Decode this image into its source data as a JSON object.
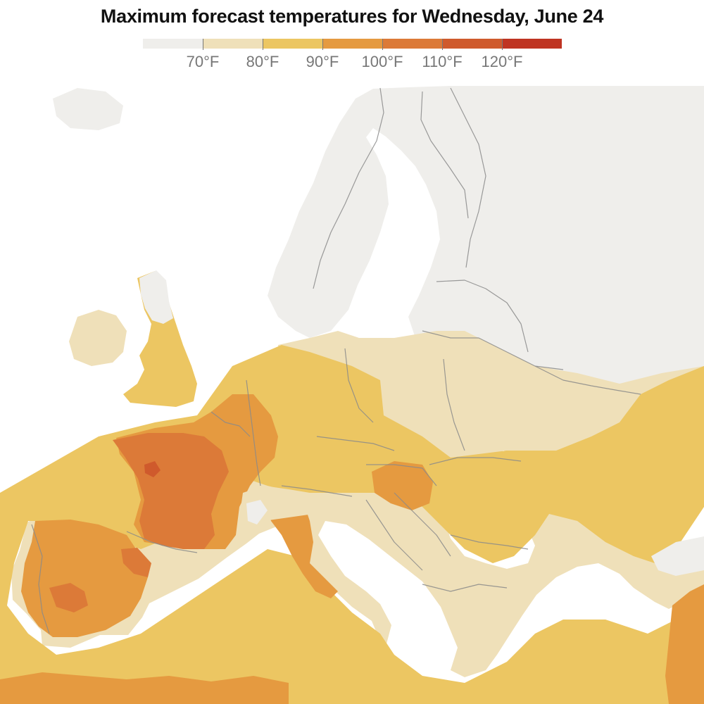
{
  "title": "Maximum forecast temperatures for Wednesday, June 24",
  "legend": {
    "bins": [
      {
        "color": "#efeeeb"
      },
      {
        "color": "#efe0b9"
      },
      {
        "color": "#ecc662"
      },
      {
        "color": "#e59a40"
      },
      {
        "color": "#dc7a38"
      },
      {
        "color": "#cf5a2c"
      },
      {
        "color": "#bf3422"
      }
    ],
    "labels": [
      "70°F",
      "80°F",
      "90°F",
      "100°F",
      "110°F",
      "120°F"
    ]
  },
  "colors": {
    "sea": "#ffffff",
    "land_cool": "#efeeeb",
    "band_80": "#efe0b9",
    "band_90": "#ecc662",
    "band_100": "#e59a40",
    "band_110": "#dc7a38",
    "band_120": "#cf5a2c",
    "border": "#8a8a8a"
  }
}
